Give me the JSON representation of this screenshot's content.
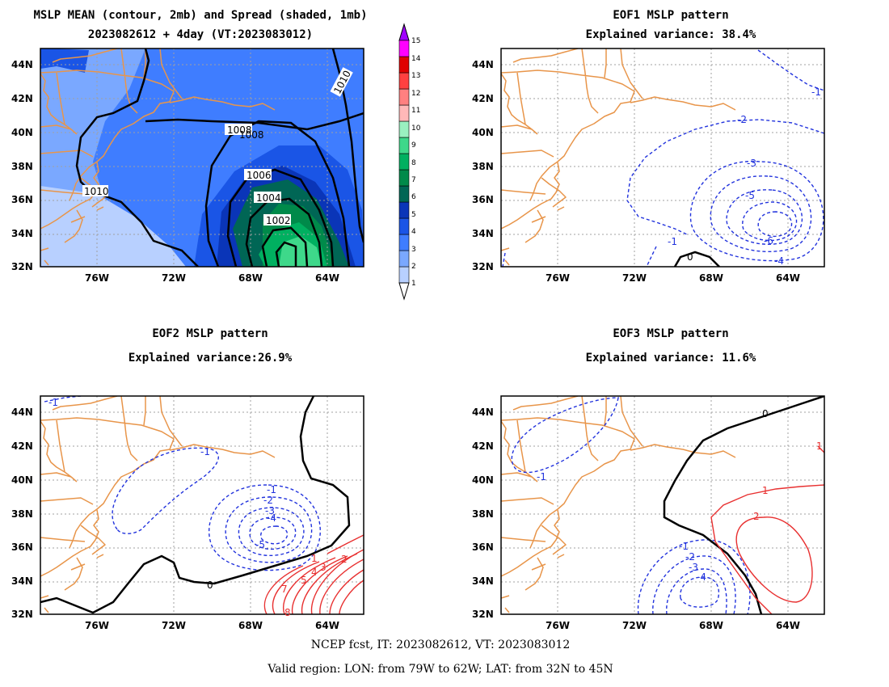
{
  "panels": [
    {
      "id": "mean",
      "title_line1": "MSLP MEAN (contour, 2mb) and Spread (shaded, 1mb)",
      "title_line2": "2023082612 + 4day (VT:2023083012)",
      "contour_labels": [
        "1010",
        "1008",
        "1008",
        "1006",
        "1004",
        "1002",
        "1010"
      ]
    },
    {
      "id": "eof1",
      "title_line1": "EOF1 MSLP pattern",
      "title_line2": "Explained variance: 38.4%",
      "contour_labels": [
        "-1",
        "-2",
        "-3",
        "-5",
        "-6",
        "-4",
        "-1",
        "0"
      ]
    },
    {
      "id": "eof2",
      "title_line1": "EOF2 MSLP pattern",
      "title_line2": "Explained variance:26.9%",
      "contour_labels": [
        "-1",
        "-1",
        "-1",
        "-2",
        "-3",
        "-4",
        "-5",
        "0",
        "1",
        "2",
        "3",
        "4",
        "5",
        "7",
        "8"
      ]
    },
    {
      "id": "eof3",
      "title_line1": "EOF3 MSLP pattern",
      "title_line2": "Explained variance: 11.6%",
      "contour_labels": [
        "-1",
        "0",
        "1",
        "2",
        "1",
        "-1",
        "-2",
        "-3",
        "-4"
      ]
    }
  ],
  "axes": {
    "lat_labels": [
      "44N",
      "42N",
      "40N",
      "38N",
      "36N",
      "34N",
      "32N"
    ],
    "lon_labels": [
      "76W",
      "72W",
      "68W",
      "64W"
    ]
  },
  "colorbar": {
    "labels": [
      "15",
      "14",
      "13",
      "12",
      "11",
      "10",
      "9",
      "8",
      "7",
      "6",
      "5",
      "4",
      "3",
      "2",
      "1"
    ],
    "colors": [
      "#b8d0ff",
      "#7aa8ff",
      "#3f7dff",
      "#1a55e6",
      "#0a35b8",
      "#006655",
      "#008a4a",
      "#00b060",
      "#3ed88a",
      "#9af0c0",
      "#ffb8b8",
      "#ff8080",
      "#ff4040",
      "#e00000",
      "#ff00ff",
      "#a000ff"
    ]
  },
  "footer": {
    "line1": "NCEP fcst, IT: 2023082612, VT: 2023083012",
    "line2": "Valid region: LON: from 79W to 62W; LAT: from 32N to 45N"
  }
}
